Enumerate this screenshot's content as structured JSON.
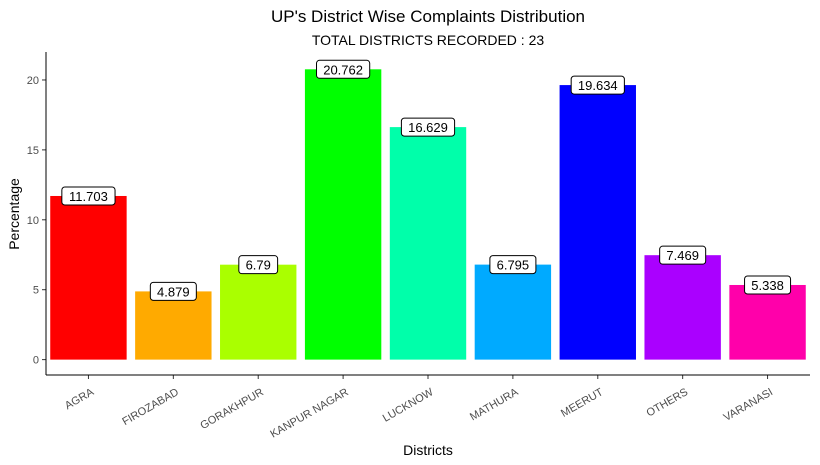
{
  "chart_data": {
    "type": "bar",
    "title": "UP's District Wise Complaints Distribution",
    "subtitle": "TOTAL DISTRICTS RECORDED : 23",
    "xlabel": "Districts",
    "ylabel": "Percentage",
    "ylim": [
      -1.1,
      22
    ],
    "yticks": [
      0,
      5,
      10,
      15,
      20
    ],
    "grid": false,
    "categories": [
      "AGRA",
      "FIROZABAD",
      "GORAKHPUR",
      "KANPUR NAGAR",
      "LUCKNOW",
      "MATHURA",
      "MEERUT",
      "OTHERS",
      "VARANASI"
    ],
    "values": [
      11.703,
      4.879,
      6.79,
      20.762,
      16.629,
      6.795,
      19.634,
      7.469,
      5.338
    ],
    "labels": [
      "11.703",
      "4.879",
      "6.79",
      "20.762",
      "16.629",
      "6.795",
      "19.634",
      "7.469",
      "5.338"
    ],
    "colors": [
      "#ff0000",
      "#ffaa00",
      "#aaff00",
      "#00ff00",
      "#00ffaa",
      "#00aaff",
      "#0000ff",
      "#aa00ff",
      "#ff00aa"
    ]
  }
}
